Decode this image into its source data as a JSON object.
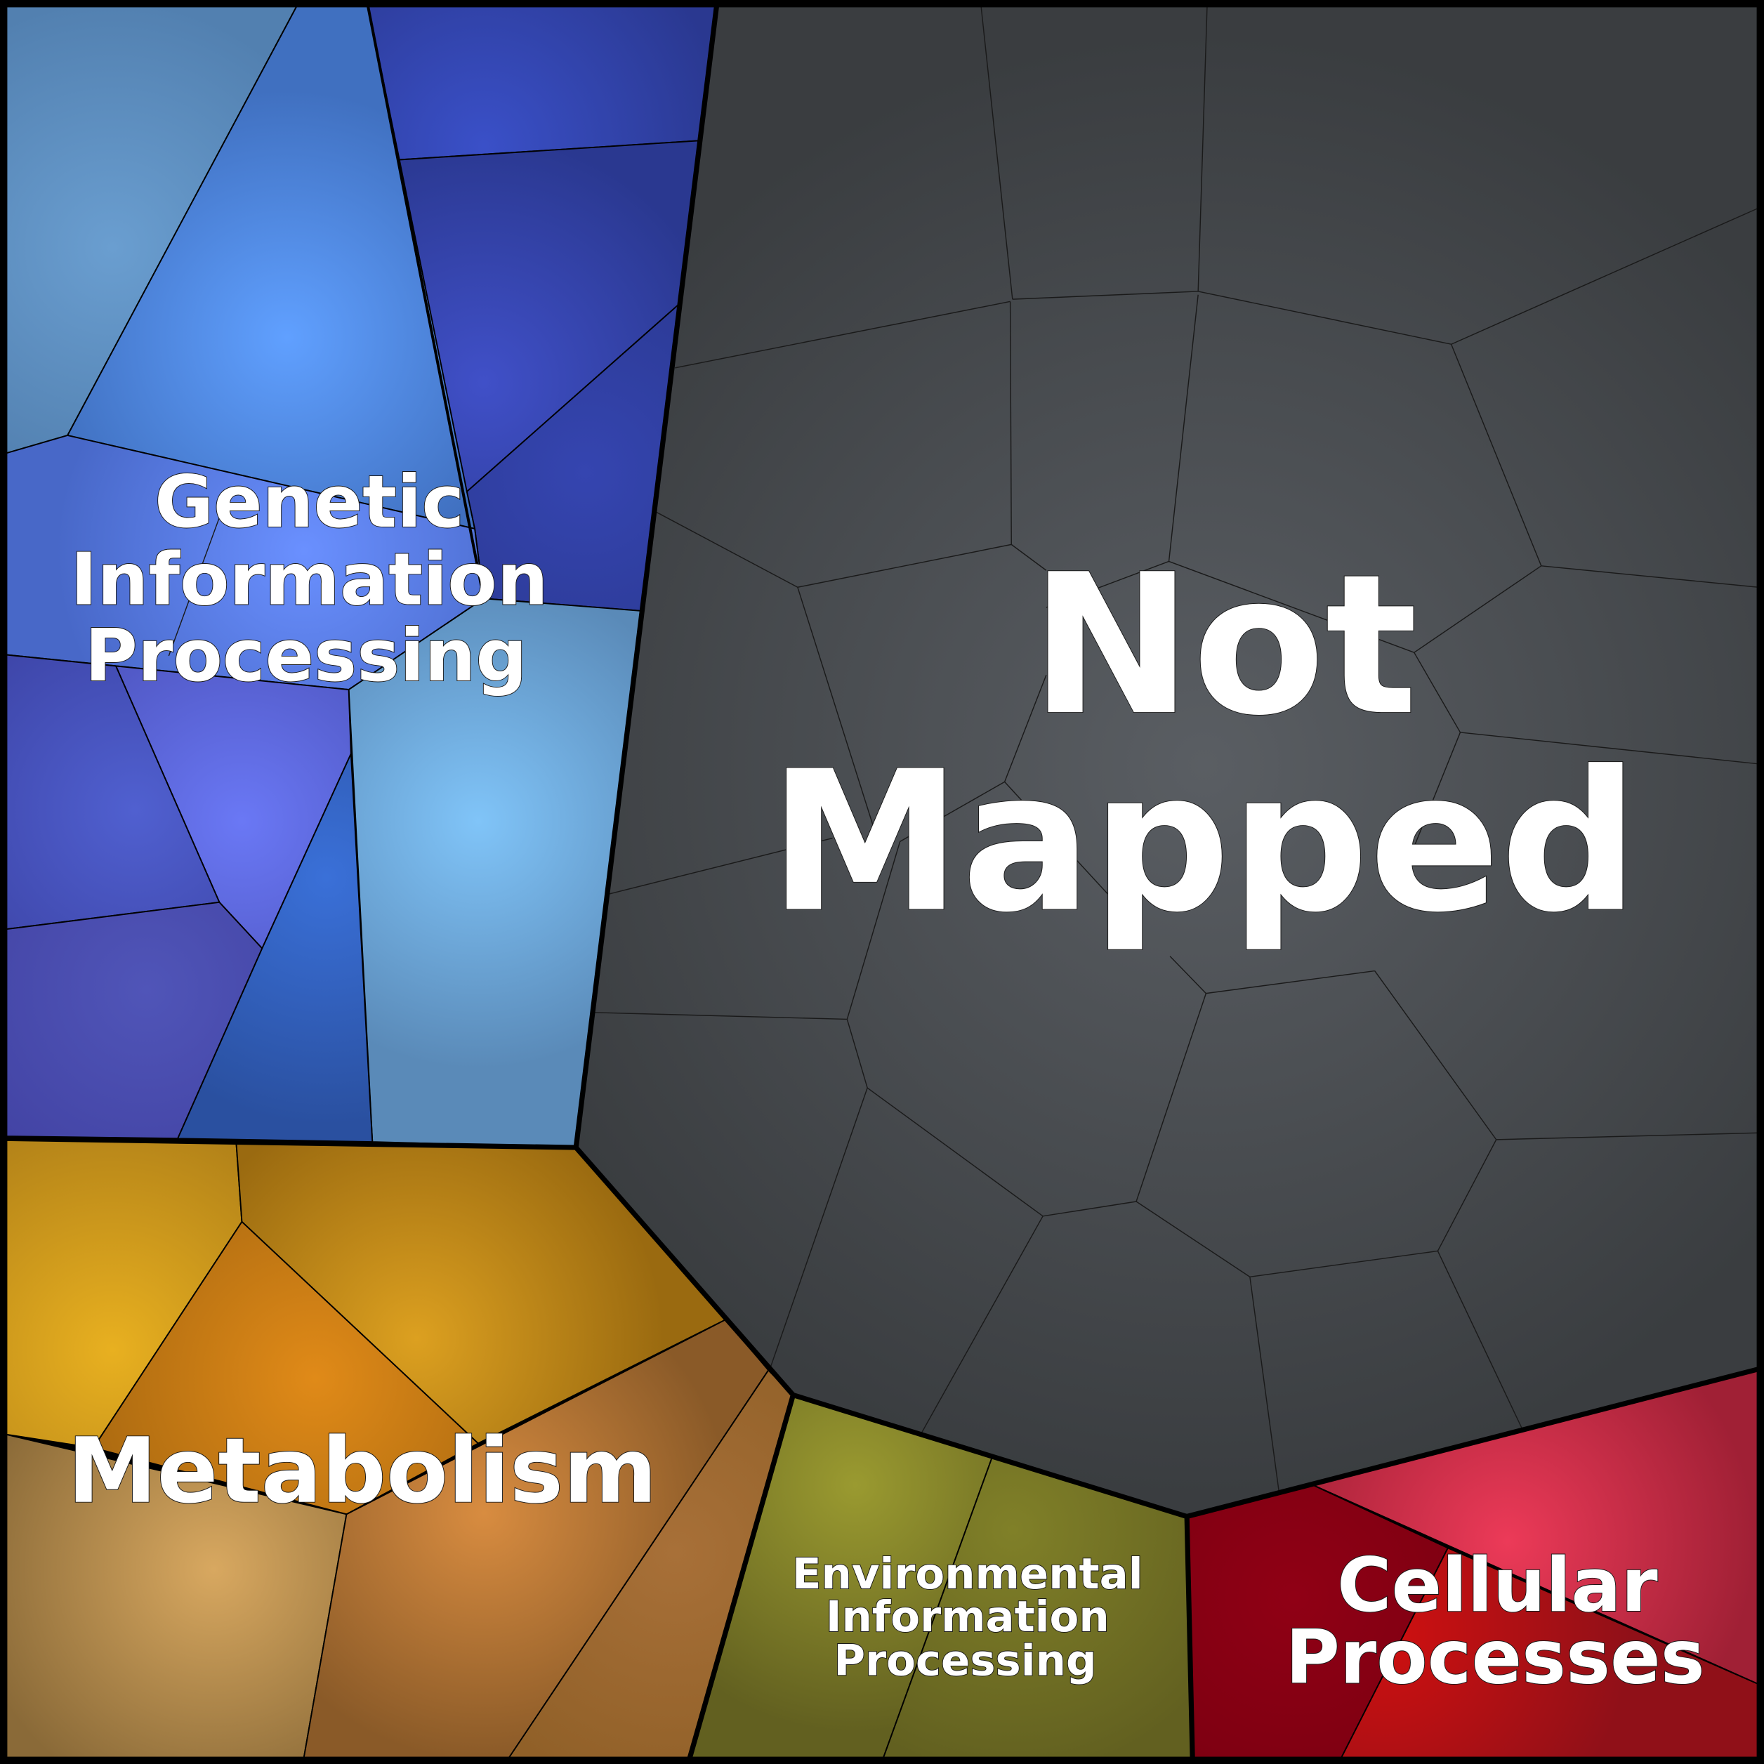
{
  "diagram": {
    "type": "voronoi-treemap",
    "categories": [
      {
        "id": "genetic",
        "label_lines": [
          "Genetic",
          "Information",
          "Processing"
        ],
        "color": "#4a70d0"
      },
      {
        "id": "not_mapped",
        "label_lines": [
          "Not",
          "Mapped"
        ],
        "color": "#3c3f43"
      },
      {
        "id": "metabolism",
        "label_lines": [
          "Metabolism"
        ],
        "color": "#c08a20"
      },
      {
        "id": "environmental",
        "label_lines": [
          "Environmental",
          "Information",
          "Processing"
        ],
        "color": "#6e7020"
      },
      {
        "id": "cellular",
        "label_lines": [
          "Cellular",
          "Processes"
        ],
        "color": "#a01020"
      }
    ]
  }
}
